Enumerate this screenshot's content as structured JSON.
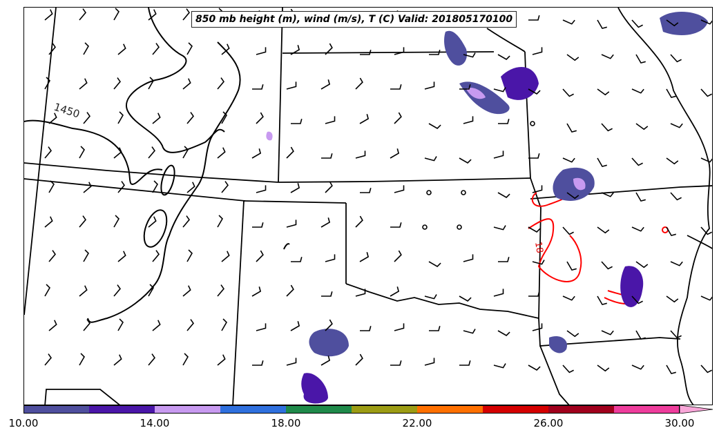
{
  "title": "850 mb height (m), wind (m/s), T (C) Valid: 201805170100",
  "contour_labels": [
    {
      "text": "1450",
      "color": "#222222"
    },
    {
      "text": "18",
      "color": "#e00000"
    }
  ],
  "colorbar": {
    "segments": [
      "#4f4f9e",
      "#4a16a8",
      "#c89af0",
      "#2f70de",
      "#1f8a4a",
      "#9c9c14",
      "#ff7000",
      "#d40000",
      "#a0001c",
      "#ee3d9c",
      "#f8a6d8"
    ],
    "tick_labels": [
      "10.00",
      "14.00",
      "18.00",
      "22.00",
      "26.00",
      "30.00"
    ],
    "extend": "max"
  },
  "layers": {
    "height_contour_color": "#000000",
    "temperature_contour_color": "#ff0000",
    "state_border_color": "#000000",
    "wind_barb_color": "#000000"
  }
}
